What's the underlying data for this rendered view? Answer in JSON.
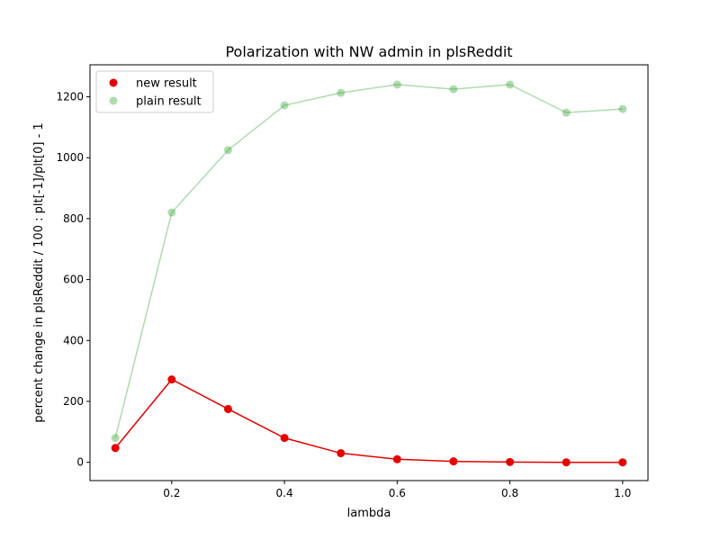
{
  "chart_data": {
    "type": "line",
    "title": "Polarization with NW admin in plsReddit",
    "xlabel": "lambda",
    "ylabel": "percent change in plsReddit / 100 : plt[-1]/plt[0] - 1",
    "xlim": [
      0.055,
      1.045
    ],
    "ylim": [
      -60,
      1305
    ],
    "x_ticks": [
      0.2,
      0.4,
      0.6,
      0.8,
      1.0
    ],
    "x_tick_labels": [
      "0.2",
      "0.4",
      "0.6",
      "0.8",
      "1.0"
    ],
    "y_ticks": [
      0,
      200,
      400,
      600,
      800,
      1000,
      1200
    ],
    "y_tick_labels": [
      "0",
      "200",
      "400",
      "600",
      "800",
      "1000",
      "1200"
    ],
    "grid": false,
    "legend_position": "top-left",
    "x": [
      0.1,
      0.2,
      0.3,
      0.4,
      0.5,
      0.6,
      0.7,
      0.8,
      0.9,
      1.0
    ],
    "series": [
      {
        "name": "new result",
        "color": "#e60000",
        "opacity": 1,
        "values": [
          47,
          272,
          175,
          80,
          30,
          10,
          3,
          1,
          0,
          0
        ]
      },
      {
        "name": "plain result",
        "color": "#2ca02c",
        "opacity": 0.38,
        "values": [
          80,
          820,
          1025,
          1172,
          1213,
          1240,
          1225,
          1240,
          1148,
          1160
        ]
      }
    ]
  }
}
